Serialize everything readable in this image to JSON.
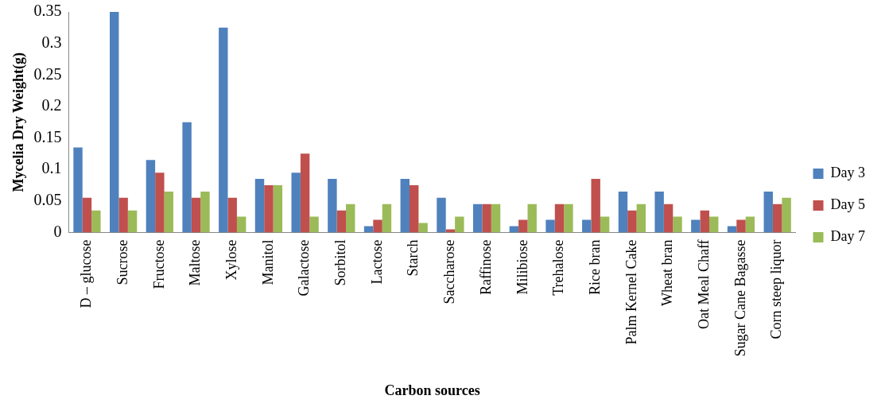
{
  "chart_data": {
    "type": "bar",
    "xlabel": "Carbon sources",
    "ylabel": "Mycelia Dry Weight(g)",
    "categories": [
      "D – glucose",
      "Sucrose",
      "Fructose",
      "Maltose",
      "Xylose",
      "Manitol",
      "Galactose",
      "Sorbitol",
      "Lactose",
      "Starch",
      "Saccharose",
      "Raffinose",
      "Milibiose",
      "Trehalose",
      "Rice bran",
      "Palm Kernel Cake",
      "Wheat bran",
      "Oat Meal Chaff",
      "Sugar Cane Bagasse",
      "Corn steep liquor"
    ],
    "series": [
      {
        "name": "Day 3",
        "color": "#4f81bd",
        "values": [
          0.135,
          0.35,
          0.115,
          0.175,
          0.325,
          0.085,
          0.095,
          0.085,
          0.01,
          0.085,
          0.055,
          0.045,
          0.01,
          0.02,
          0.02,
          0.065,
          0.065,
          0.02,
          0.01,
          0.065
        ]
      },
      {
        "name": "Day 5",
        "color": "#c0504d",
        "values": [
          0.055,
          0.055,
          0.095,
          0.055,
          0.055,
          0.075,
          0.125,
          0.035,
          0.02,
          0.075,
          0.005,
          0.045,
          0.02,
          0.045,
          0.085,
          0.035,
          0.045,
          0.035,
          0.02,
          0.045
        ]
      },
      {
        "name": "Day 7",
        "color": "#9bbb59",
        "values": [
          0.035,
          0.035,
          0.065,
          0.065,
          0.025,
          0.075,
          0.025,
          0.045,
          0.045,
          0.015,
          0.025,
          0.045,
          0.045,
          0.045,
          0.025,
          0.045,
          0.025,
          0.025,
          0.025,
          0.055
        ]
      }
    ],
    "ylim": [
      0,
      0.35
    ],
    "yticks": [
      0,
      0.05,
      0.1,
      0.15,
      0.2,
      0.25,
      0.3,
      0.35
    ],
    "grid": false,
    "legend": "right"
  }
}
